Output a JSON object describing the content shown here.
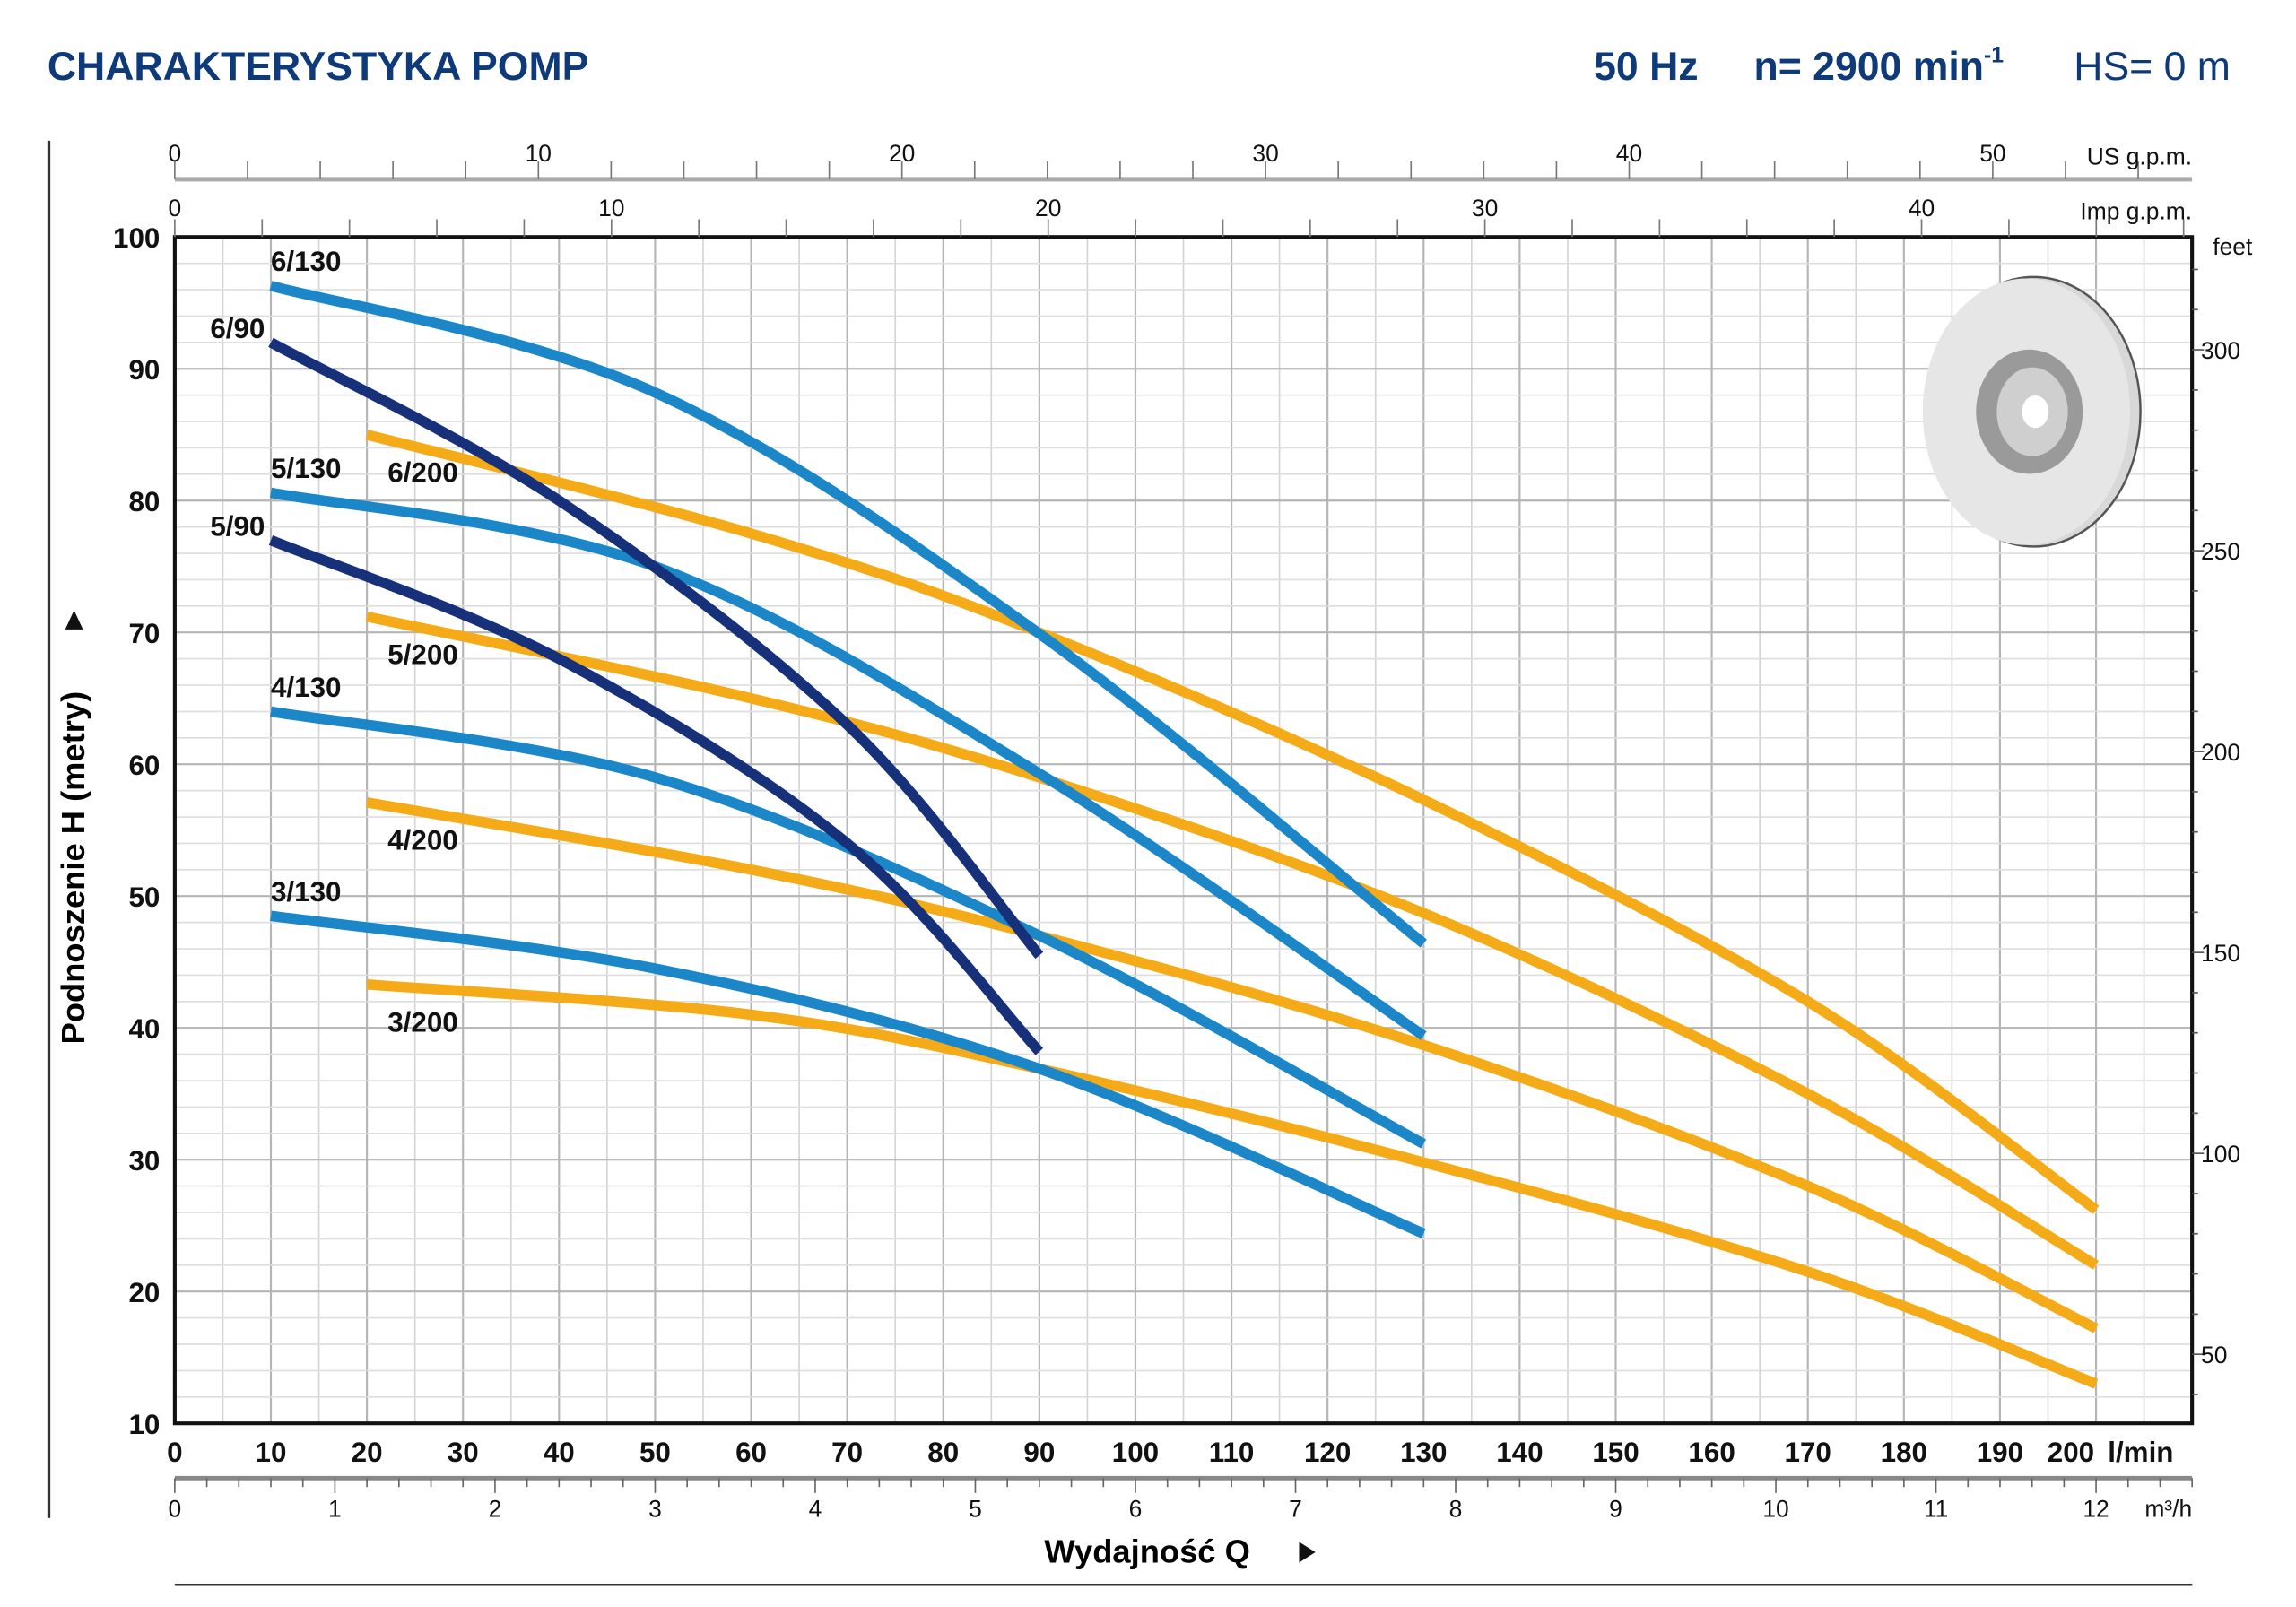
{
  "header": {
    "title": "CHARAKTERYSTYKA POMP",
    "freq": "50 Hz",
    "speed": "n= 2900 min",
    "speed_exp": "-1",
    "hs": "HS= 0 m"
  },
  "chart_data": {
    "type": "line",
    "title": "CHARAKTERYSTYKA POMP",
    "xlabel": "Wydajność Q",
    "ylabel": "Podnoszenie H (metry)",
    "x_unit": "l/min",
    "xlim": [
      0,
      210
    ],
    "ylim": [
      10,
      100
    ],
    "x_ticks": [
      0,
      10,
      20,
      30,
      40,
      50,
      60,
      70,
      80,
      90,
      100,
      110,
      120,
      130,
      140,
      150,
      160,
      170,
      180,
      190,
      200
    ],
    "y_ticks": [
      10,
      20,
      30,
      40,
      50,
      60,
      70,
      80,
      90,
      100
    ],
    "grid": true,
    "secondary_axes": {
      "us_gpm": {
        "label": "US g.p.m.",
        "ticks": [
          0,
          10,
          20,
          30,
          40,
          50
        ]
      },
      "imp_gpm": {
        "label": "Imp g.p.m.",
        "ticks": [
          0,
          10,
          20,
          30,
          40
        ]
      },
      "m3h": {
        "label": "m³/h",
        "ticks": [
          0,
          1,
          2,
          3,
          4,
          5,
          6,
          7,
          8,
          9,
          10,
          11,
          12
        ]
      },
      "feet": {
        "label": "feet",
        "ticks": [
          50,
          100,
          150,
          200,
          250,
          300
        ]
      }
    },
    "colors": {
      "130": "#1b87c9",
      "90": "#16317a",
      "200": "#f5ab17"
    },
    "series": [
      {
        "name": "6/200",
        "group": "200",
        "x": [
          20,
          60,
          90,
          130,
          170,
          200
        ],
        "y": [
          85,
          77.5,
          70,
          57.3,
          42,
          26.2
        ]
      },
      {
        "name": "5/200",
        "group": "200",
        "x": [
          20,
          60,
          90,
          130,
          170,
          200
        ],
        "y": [
          71.2,
          65,
          59,
          48.7,
          35,
          22
        ]
      },
      {
        "name": "4/200",
        "group": "200",
        "x": [
          20,
          60,
          90,
          130,
          170,
          200
        ],
        "y": [
          57.1,
          52,
          47,
          38.7,
          28,
          17.2
        ]
      },
      {
        "name": "3/200",
        "group": "200",
        "x": [
          20,
          60,
          90,
          130,
          170,
          200
        ],
        "y": [
          43.3,
          41,
          36.9,
          29.8,
          21.5,
          13
        ]
      },
      {
        "name": "6/130",
        "group": "130",
        "x": [
          10,
          50,
          90,
          130
        ],
        "y": [
          96.3,
          88.2,
          69.9,
          46.4
        ]
      },
      {
        "name": "5/130",
        "group": "130",
        "x": [
          10,
          50,
          90,
          130
        ],
        "y": [
          80.6,
          75,
          59.3,
          39.4
        ]
      },
      {
        "name": "4/130",
        "group": "130",
        "x": [
          10,
          50,
          90,
          130
        ],
        "y": [
          64,
          59,
          47,
          31.2
        ]
      },
      {
        "name": "3/130",
        "group": "130",
        "x": [
          10,
          50,
          90,
          130
        ],
        "y": [
          48.5,
          44.5,
          36.9,
          24.4
        ]
      },
      {
        "name": "6/90",
        "group": "90",
        "x": [
          10,
          40,
          70,
          90
        ],
        "y": [
          92,
          80,
          63,
          45.5
        ]
      },
      {
        "name": "5/90",
        "group": "90",
        "x": [
          10,
          40,
          70,
          90
        ],
        "y": [
          77,
          68,
          54,
          38.2
        ]
      }
    ]
  }
}
